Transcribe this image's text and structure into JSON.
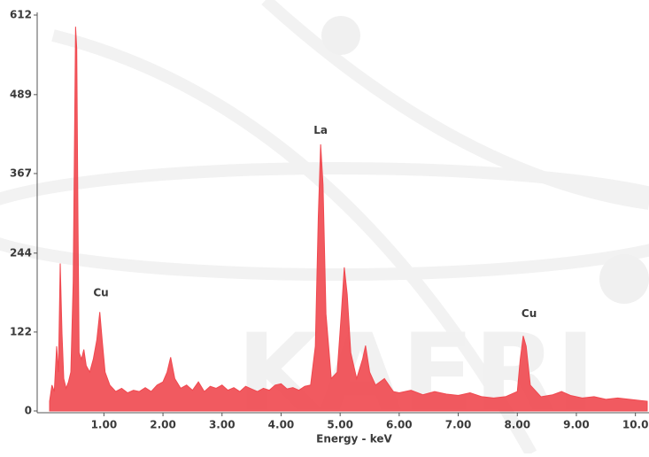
{
  "chart_data": {
    "type": "area",
    "x": [
      0.08,
      0.12,
      0.16,
      0.2,
      0.23,
      0.26,
      0.29,
      0.32,
      0.36,
      0.4,
      0.44,
      0.48,
      0.5,
      0.52,
      0.54,
      0.56,
      0.58,
      0.62,
      0.66,
      0.7,
      0.76,
      0.82,
      0.88,
      0.93,
      0.97,
      1.02,
      1.1,
      1.2,
      1.3,
      1.4,
      1.5,
      1.6,
      1.7,
      1.8,
      1.9,
      2.0,
      2.07,
      2.13,
      2.2,
      2.3,
      2.4,
      2.5,
      2.6,
      2.7,
      2.8,
      2.9,
      3.0,
      3.1,
      3.2,
      3.3,
      3.4,
      3.5,
      3.6,
      3.7,
      3.8,
      3.9,
      4.0,
      4.1,
      4.2,
      4.3,
      4.4,
      4.5,
      4.58,
      4.63,
      4.67,
      4.71,
      4.76,
      4.85,
      4.95,
      5.02,
      5.07,
      5.12,
      5.18,
      5.28,
      5.38,
      5.43,
      5.5,
      5.6,
      5.75,
      5.9,
      6.0,
      6.2,
      6.4,
      6.6,
      6.8,
      7.0,
      7.2,
      7.4,
      7.6,
      7.8,
      8.0,
      8.05,
      8.1,
      8.15,
      8.22,
      8.4,
      8.6,
      8.75,
      8.9,
      9.1,
      9.3,
      9.5,
      9.7,
      9.9,
      10.1,
      10.2
    ],
    "values": [
      15,
      40,
      30,
      100,
      60,
      228,
      120,
      50,
      35,
      45,
      60,
      200,
      396,
      594,
      560,
      300,
      90,
      80,
      95,
      70,
      60,
      80,
      110,
      153,
      110,
      60,
      40,
      30,
      35,
      28,
      32,
      30,
      36,
      30,
      40,
      45,
      60,
      83,
      50,
      35,
      40,
      32,
      45,
      30,
      38,
      35,
      40,
      32,
      36,
      30,
      38,
      34,
      30,
      35,
      32,
      40,
      42,
      34,
      36,
      32,
      38,
      40,
      100,
      300,
      412,
      350,
      150,
      50,
      60,
      150,
      222,
      180,
      90,
      50,
      80,
      101,
      60,
      40,
      50,
      30,
      28,
      32,
      25,
      30,
      26,
      24,
      28,
      22,
      20,
      22,
      30,
      80,
      116,
      100,
      40,
      22,
      25,
      30,
      24,
      20,
      22,
      18,
      20,
      18,
      16,
      15
    ],
    "color": "#f0484f",
    "x_label": "Energy - keV",
    "xlim": [
      -0.13,
      10.23
    ],
    "ylim": [
      0,
      612
    ],
    "yticks": [
      0,
      122,
      244,
      367,
      489,
      612
    ],
    "xticks": [
      {
        "value": 1,
        "label": "1.00"
      },
      {
        "value": 2,
        "label": "2.00"
      },
      {
        "value": 3,
        "label": "3.00"
      },
      {
        "value": 4,
        "label": "4.00"
      },
      {
        "value": 5,
        "label": "5.00"
      },
      {
        "value": 6,
        "label": "6.00"
      },
      {
        "value": 7,
        "label": "7.00"
      },
      {
        "value": 8,
        "label": "8.00"
      },
      {
        "value": 9,
        "label": "9.00"
      },
      {
        "value": 10,
        "label": "10.0"
      }
    ],
    "annotations": [
      {
        "text": "Cu",
        "x": 0.95,
        "y": 182
      },
      {
        "text": "La",
        "x": 4.67,
        "y": 433
      },
      {
        "text": "Cu",
        "x": 8.2,
        "y": 150
      }
    ]
  }
}
